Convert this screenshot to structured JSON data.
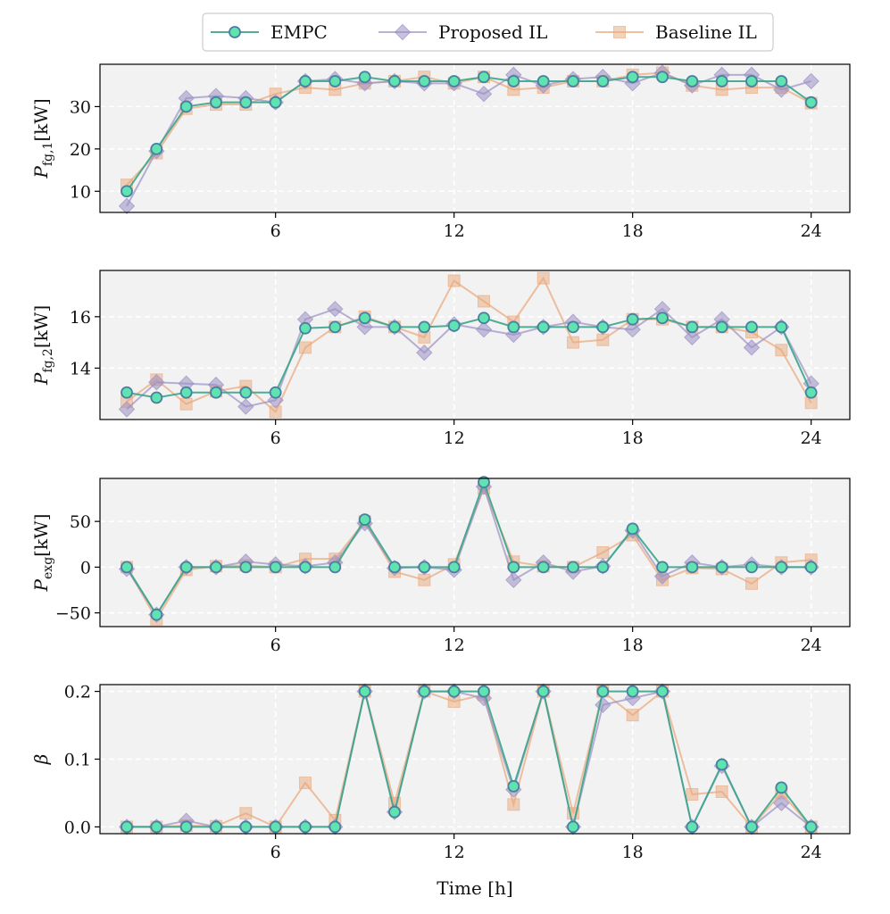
{
  "legend": [
    {
      "name": "EMPC",
      "color": "#2ea882",
      "marker": "circle"
    },
    {
      "name": "Proposed IL",
      "color": "#9b90c4",
      "marker": "diamond"
    },
    {
      "name": "Baseline IL",
      "color": "#eaa779",
      "marker": "square"
    }
  ],
  "xlabel": "Time [h]",
  "chart_data": [
    {
      "type": "line",
      "title": "",
      "ylabel_main": "P",
      "ylabel_sub": "fg,1",
      "ylabel_unit": "[kW]",
      "xlim": [
        0.1,
        25.3
      ],
      "ylim": [
        5,
        40
      ],
      "xticks": [
        6,
        12,
        18,
        24
      ],
      "yticks": [
        10,
        20,
        30
      ],
      "ytick_labels": [
        "10",
        "20",
        "30"
      ],
      "x": [
        1,
        2,
        3,
        4,
        5,
        6,
        7,
        8,
        9,
        10,
        11,
        12,
        13,
        14,
        15,
        16,
        17,
        18,
        19,
        20,
        21,
        22,
        23,
        24
      ],
      "series": [
        {
          "name": "Baseline IL",
          "values": [
            11.5,
            19,
            29.5,
            30.5,
            30.5,
            33,
            34.5,
            34,
            35.5,
            36,
            37,
            35.5,
            37,
            34,
            34.5,
            36,
            36,
            37.5,
            38,
            35,
            34,
            34.5,
            34.5,
            30.8
          ]
        },
        {
          "name": "Proposed IL",
          "values": [
            6.5,
            19.5,
            32,
            32.5,
            32,
            31,
            36,
            36.5,
            35.5,
            36,
            35.5,
            35.5,
            33,
            37.5,
            35,
            36.5,
            37,
            35.5,
            38,
            35,
            37.5,
            37.5,
            34,
            36
          ]
        },
        {
          "name": "EMPC",
          "values": [
            10,
            20,
            30,
            31,
            31,
            31,
            36,
            36,
            37,
            36,
            36,
            36,
            37,
            36,
            36,
            36,
            36,
            37,
            37,
            36,
            36,
            36,
            36,
            31
          ]
        }
      ]
    },
    {
      "type": "line",
      "title": "",
      "ylabel_main": "P",
      "ylabel_sub": "fg,2",
      "ylabel_unit": "[kW]",
      "xlim": [
        0.1,
        25.3
      ],
      "ylim": [
        12.0,
        17.8
      ],
      "xticks": [
        6,
        12,
        18,
        24
      ],
      "yticks": [
        14,
        16
      ],
      "ytick_labels": [
        "14",
        "16"
      ],
      "x": [
        1,
        2,
        3,
        4,
        5,
        6,
        7,
        8,
        9,
        10,
        11,
        12,
        13,
        14,
        15,
        16,
        17,
        18,
        19,
        20,
        21,
        22,
        23,
        24
      ],
      "series": [
        {
          "name": "Baseline IL",
          "values": [
            12.7,
            13.55,
            12.6,
            13.1,
            13.3,
            12.3,
            14.8,
            15.6,
            16.0,
            15.6,
            15.2,
            17.4,
            16.6,
            15.8,
            17.5,
            15.0,
            15.1,
            15.9,
            15.9,
            15.6,
            15.6,
            15.4,
            14.7,
            12.65
          ]
        },
        {
          "name": "Proposed IL",
          "values": [
            12.4,
            13.45,
            13.4,
            13.35,
            12.5,
            12.75,
            15.9,
            16.3,
            15.6,
            15.6,
            14.6,
            15.7,
            15.5,
            15.3,
            15.6,
            15.8,
            15.6,
            15.5,
            16.3,
            15.2,
            15.9,
            14.8,
            15.6,
            13.4
          ]
        },
        {
          "name": "EMPC",
          "values": [
            13.05,
            12.85,
            13.05,
            13.05,
            13.05,
            13.05,
            15.55,
            15.6,
            15.95,
            15.6,
            15.6,
            15.65,
            15.95,
            15.6,
            15.6,
            15.6,
            15.6,
            15.9,
            15.95,
            15.6,
            15.6,
            15.6,
            15.6,
            13.05
          ]
        }
      ]
    },
    {
      "type": "line",
      "title": "",
      "ylabel_main": "P",
      "ylabel_sub": "exg",
      "ylabel_unit": "[kW]",
      "xlim": [
        0.1,
        25.3
      ],
      "ylim": [
        -65,
        97
      ],
      "xticks": [
        6,
        12,
        18,
        24
      ],
      "yticks": [
        -50,
        0,
        50
      ],
      "ytick_labels": [
        "−50",
        "0",
        "50"
      ],
      "x": [
        1,
        2,
        3,
        4,
        5,
        6,
        7,
        8,
        9,
        10,
        11,
        12,
        13,
        14,
        15,
        16,
        17,
        18,
        19,
        20,
        21,
        22,
        23,
        24
      ],
      "series": [
        {
          "name": "Baseline IL",
          "values": [
            0,
            -57,
            -3,
            1,
            2,
            0,
            9,
            9,
            50,
            -5,
            -14,
            3,
            86,
            6,
            1,
            0,
            16,
            35,
            -14,
            -1,
            -2,
            -18,
            5,
            8
          ]
        },
        {
          "name": "Proposed IL",
          "values": [
            -2,
            -52,
            0,
            0,
            6,
            3,
            1,
            5,
            48,
            -1,
            0,
            -3,
            88,
            -14,
            5,
            -5,
            1,
            40,
            -10,
            5,
            0,
            3,
            0,
            0
          ]
        },
        {
          "name": "EMPC",
          "values": [
            0,
            -52,
            0,
            0,
            0,
            0,
            0,
            0,
            52,
            0,
            0,
            0,
            93,
            0,
            0,
            0,
            0,
            42,
            0,
            0,
            0,
            0,
            0,
            0
          ]
        }
      ]
    },
    {
      "type": "line",
      "title": "",
      "ylabel_main": "β",
      "ylabel_sub": "",
      "ylabel_unit": "",
      "xlim": [
        0.1,
        25.3
      ],
      "ylim": [
        -0.01,
        0.21
      ],
      "xticks": [
        6,
        12,
        18,
        24
      ],
      "yticks": [
        0.0,
        0.1,
        0.2
      ],
      "ytick_labels": [
        "0.0",
        "0.1",
        "0.2"
      ],
      "x": [
        1,
        2,
        3,
        4,
        5,
        6,
        7,
        8,
        9,
        10,
        11,
        12,
        13,
        14,
        15,
        16,
        17,
        18,
        19,
        20,
        21,
        22,
        23,
        24
      ],
      "series": [
        {
          "name": "Baseline IL",
          "values": [
            0,
            0,
            0.002,
            0.001,
            0.02,
            0,
            0.065,
            0.01,
            0.2,
            0.035,
            0.2,
            0.185,
            0.195,
            0.033,
            0.2,
            0.02,
            0.2,
            0.165,
            0.2,
            0.048,
            0.052,
            0,
            0.05,
            0
          ]
        },
        {
          "name": "Proposed IL",
          "values": [
            0,
            0,
            0.009,
            0,
            0,
            0,
            0,
            0,
            0.2,
            0.022,
            0.2,
            0.2,
            0.19,
            0.055,
            0.2,
            0,
            0.18,
            0.19,
            0.2,
            0,
            0.09,
            0,
            0.035,
            0
          ]
        },
        {
          "name": "EMPC",
          "values": [
            0,
            0,
            0,
            0,
            0,
            0,
            0,
            0,
            0.2,
            0.022,
            0.2,
            0.2,
            0.2,
            0.06,
            0.2,
            0,
            0.2,
            0.2,
            0.2,
            0,
            0.092,
            0,
            0.058,
            0
          ]
        }
      ]
    }
  ]
}
